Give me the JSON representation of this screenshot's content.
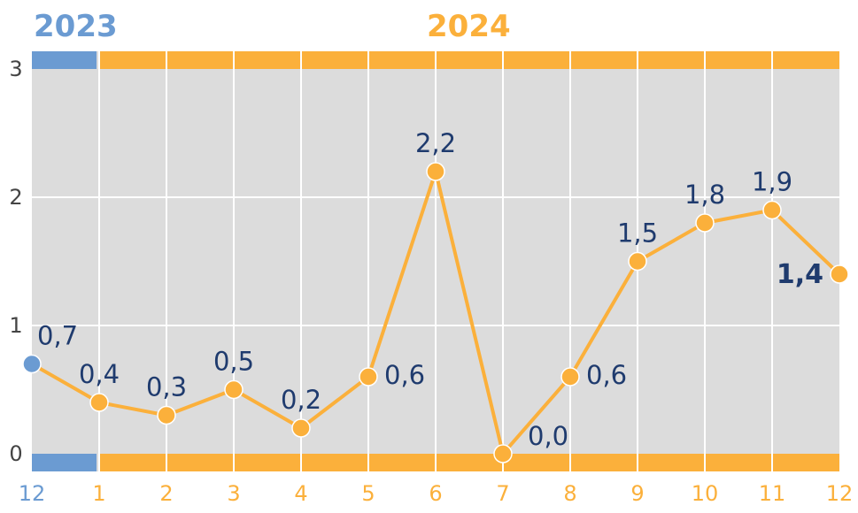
{
  "years": [
    {
      "label": "2023",
      "color": "#6b9bd2"
    },
    {
      "label": "2024",
      "color": "#fbb03b"
    }
  ],
  "colors": {
    "plot_bg": "#dcdcdc",
    "grid": "#ffffff",
    "line": "#fbb03b",
    "point_2023": "#6b9bd2",
    "point_2024": "#fbb03b",
    "label_text": "#1f3b6e",
    "axis_text": "#444444"
  },
  "chart_data": {
    "type": "line",
    "x": [
      "12",
      "1",
      "2",
      "3",
      "4",
      "5",
      "6",
      "7",
      "8",
      "9",
      "10",
      "11",
      "12"
    ],
    "year_of_point": [
      "2023",
      "2024",
      "2024",
      "2024",
      "2024",
      "2024",
      "2024",
      "2024",
      "2024",
      "2024",
      "2024",
      "2024",
      "2024"
    ],
    "values": [
      0.7,
      0.4,
      0.3,
      0.5,
      0.2,
      0.6,
      2.2,
      0.0,
      0.6,
      1.5,
      1.8,
      1.9,
      1.4
    ],
    "data_labels": [
      "0,7",
      "0,4",
      "0,3",
      "0,5",
      "0,2",
      "0,6",
      "2,2",
      "0,0",
      "0,6",
      "1,5",
      "1,8",
      "1,9",
      "1,4"
    ],
    "label_bold": [
      false,
      false,
      false,
      false,
      false,
      false,
      false,
      false,
      false,
      false,
      false,
      false,
      true
    ],
    "yticks": [
      "0",
      "1",
      "2",
      "3"
    ],
    "ylim": [
      0,
      3
    ],
    "grid": true,
    "title": "",
    "xlabel": "",
    "ylabel": ""
  }
}
